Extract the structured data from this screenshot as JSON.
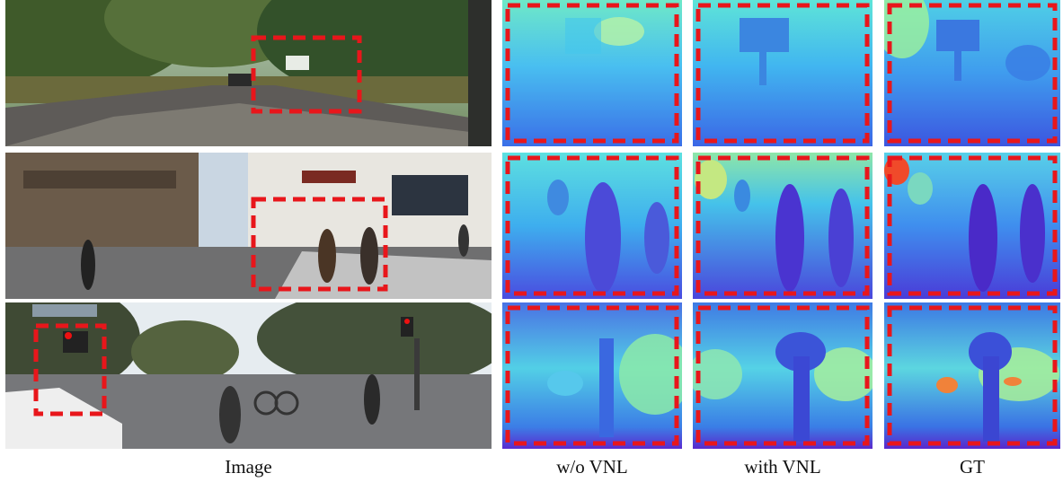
{
  "figure": {
    "captions": {
      "image": "Image",
      "without_vnl": "w/o VNL",
      "with_vnl": "with VNL",
      "gt": "GT"
    },
    "rows": [
      {
        "scene": "tree-lined road with signboard",
        "highlight_color": "#e8161b"
      },
      {
        "scene": "city sidewalk with pedestrians",
        "highlight_color": "#e8161b"
      },
      {
        "scene": "street crossing with traffic light and cyclist",
        "highlight_color": "#e8161b"
      }
    ],
    "colors": {
      "highlight": "#e8161b",
      "depth_near": "#5a2bd6",
      "depth_mid": "#3aa0f0",
      "depth_far": "#8ef0b8"
    }
  }
}
